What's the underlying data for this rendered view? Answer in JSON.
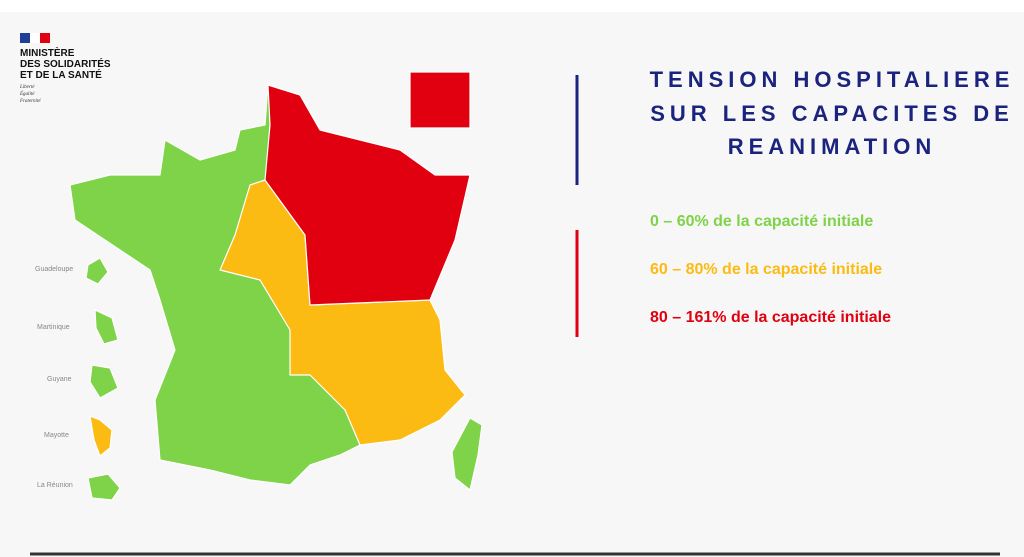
{
  "logo": {
    "lines": [
      "MINISTÈRE",
      "DES SOLIDARITÉS",
      "ET DE LA SANTÉ"
    ],
    "motto": [
      "Liberté",
      "Égalité",
      "Fraternité"
    ]
  },
  "title": [
    "TENSION HOSPITALIERE",
    "SUR LES CAPACITES DE",
    "REANIMATION"
  ],
  "legend": [
    {
      "label": "0 – 60% de la capacité initiale",
      "color": "#7ed348"
    },
    {
      "label": "60 – 80% de la capacité initiale",
      "color": "#fbbb12"
    },
    {
      "label": "80 – 161% de la capacité initiale",
      "color": "#e1000f"
    }
  ],
  "overseas": [
    "Guadeloupe",
    "Martinique",
    "Guyane",
    "Mayotte",
    "La Réunion"
  ]
}
